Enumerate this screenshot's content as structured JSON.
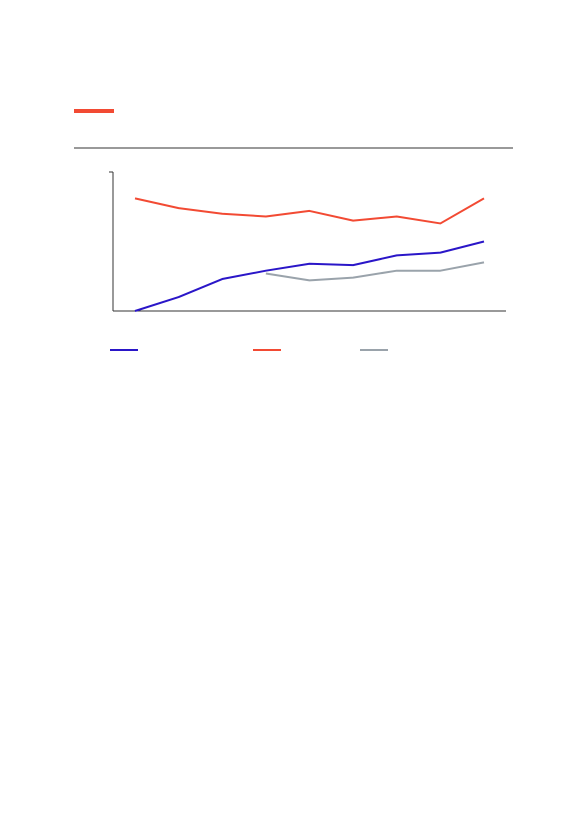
{
  "chart_data": {
    "type": "line",
    "categories": [
      null,
      null,
      null,
      null,
      null,
      null,
      null,
      null,
      null
    ],
    "series": [
      {
        "color": "#2a16c8",
        "values": [
          0,
          10,
          23,
          29,
          34,
          33,
          40,
          42,
          50
        ]
      },
      {
        "color": "#f24a33",
        "values": [
          81,
          74,
          70,
          68,
          72,
          65,
          68,
          63,
          81
        ]
      },
      {
        "color": "#9aa3ab",
        "values": [
          null,
          null,
          null,
          27,
          22,
          24,
          29,
          29,
          35
        ]
      }
    ],
    "ylim": [
      0,
      100
    ]
  }
}
